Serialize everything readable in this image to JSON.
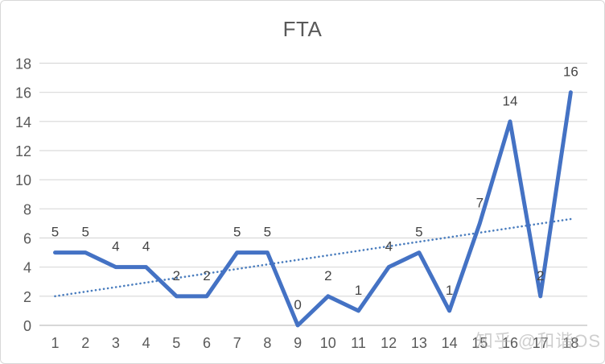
{
  "watermark": "知乎 @和谐OS",
  "chart_data": {
    "type": "line",
    "title": "FTA",
    "categories": [
      1,
      2,
      3,
      4,
      5,
      6,
      7,
      8,
      9,
      10,
      11,
      12,
      13,
      14,
      15,
      16,
      17,
      18
    ],
    "series": [
      {
        "name": "FTA",
        "values": [
          5,
          5,
          4,
          4,
          2,
          2,
          5,
          5,
          0,
          2,
          1,
          4,
          5,
          1,
          7,
          14,
          2,
          16
        ]
      }
    ],
    "data_labels_visible": true,
    "ylim": [
      0,
      18
    ],
    "yticks": [
      0,
      2,
      4,
      6,
      8,
      10,
      12,
      14,
      16,
      18
    ],
    "grid": true,
    "legend": "none",
    "trendline": {
      "type": "linear",
      "style": "dotted",
      "y_start": 2.0,
      "y_end": 7.3
    },
    "colors": {
      "series": "#4472C4",
      "trendline": "#4A7DBE",
      "gridline": "#D9D9D9",
      "axis_line": "#BFBFBF",
      "tick_text": "#595959",
      "data_label_text": "#444444",
      "title_text": "#595959",
      "background": "#FFFFFF"
    }
  }
}
